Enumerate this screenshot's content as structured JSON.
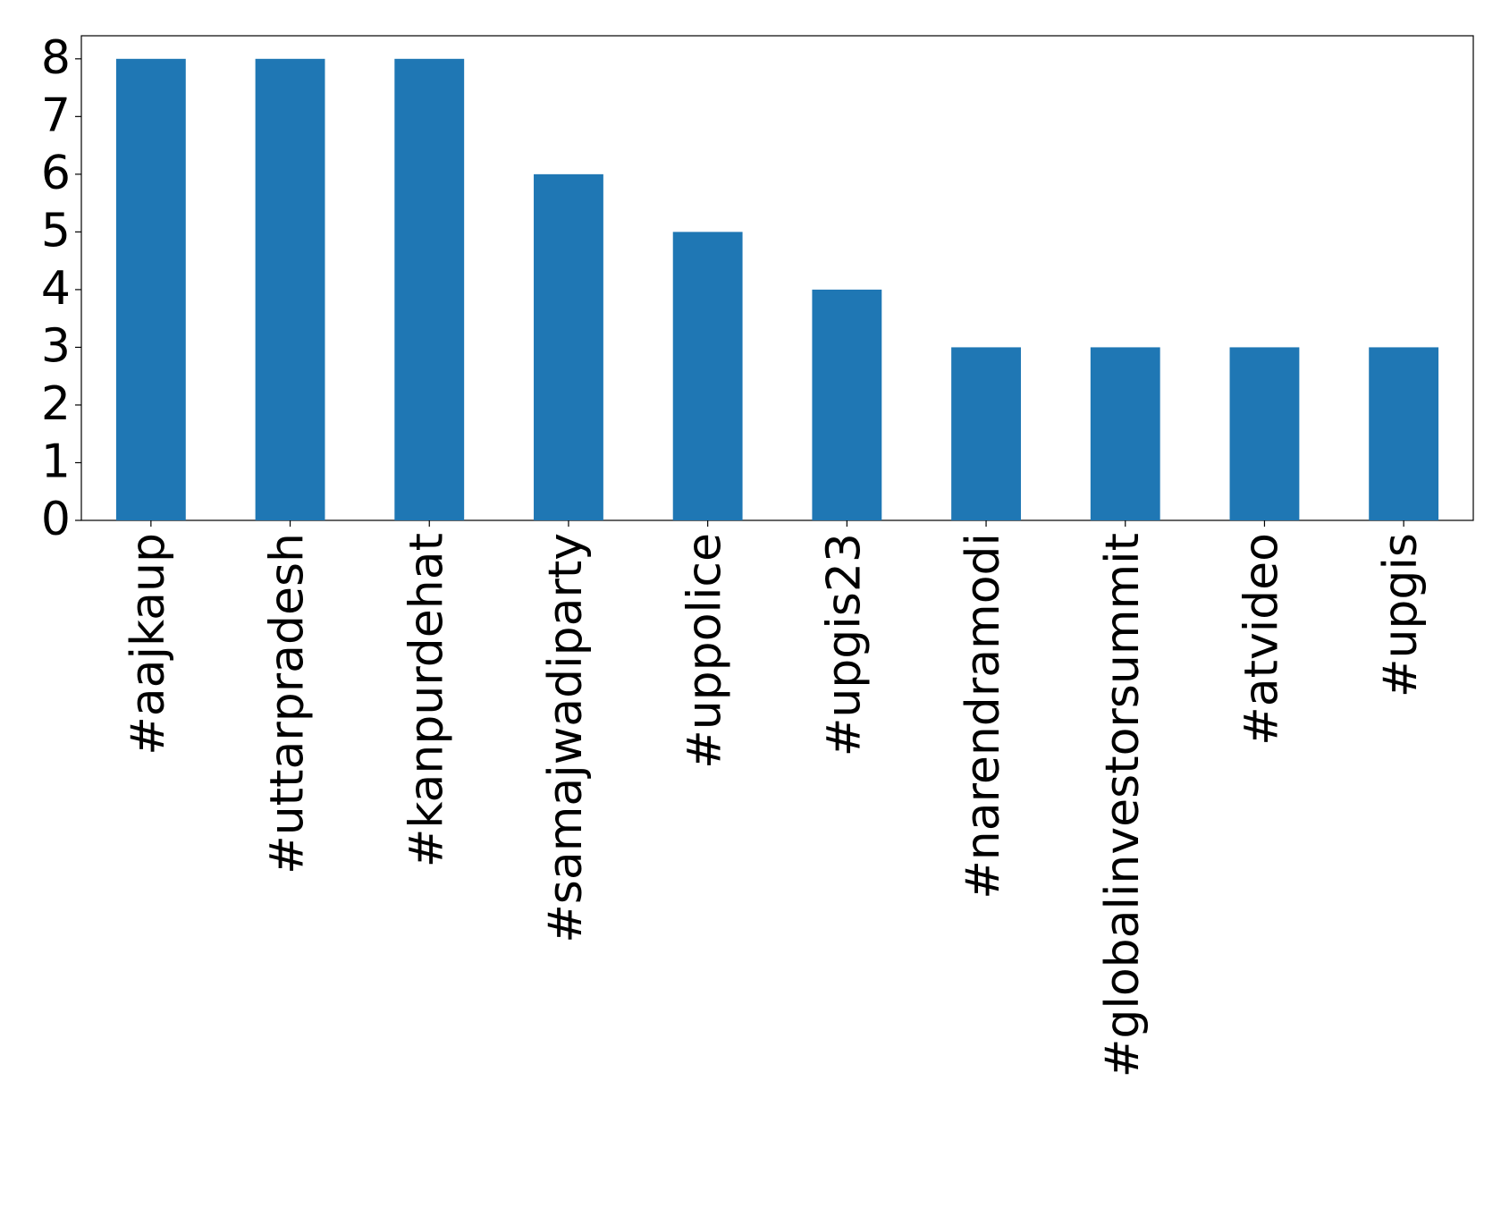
{
  "chart_data": {
    "type": "bar",
    "categories": [
      "#aajkaup",
      "#uttarpradesh",
      "#kanpurdehat",
      "#samajwadiparty",
      "#uppolice",
      "#upgis23",
      "#narendramodi",
      "#globalinvestorsummit",
      "#atvideo",
      "#upgis"
    ],
    "values": [
      8,
      8,
      8,
      6,
      5,
      4,
      3,
      3,
      3,
      3
    ],
    "color": "#1f77b4",
    "ylim": [
      0,
      8.4
    ],
    "yticks": [
      0,
      1,
      2,
      3,
      4,
      5,
      6,
      7,
      8
    ],
    "grid": false
  }
}
